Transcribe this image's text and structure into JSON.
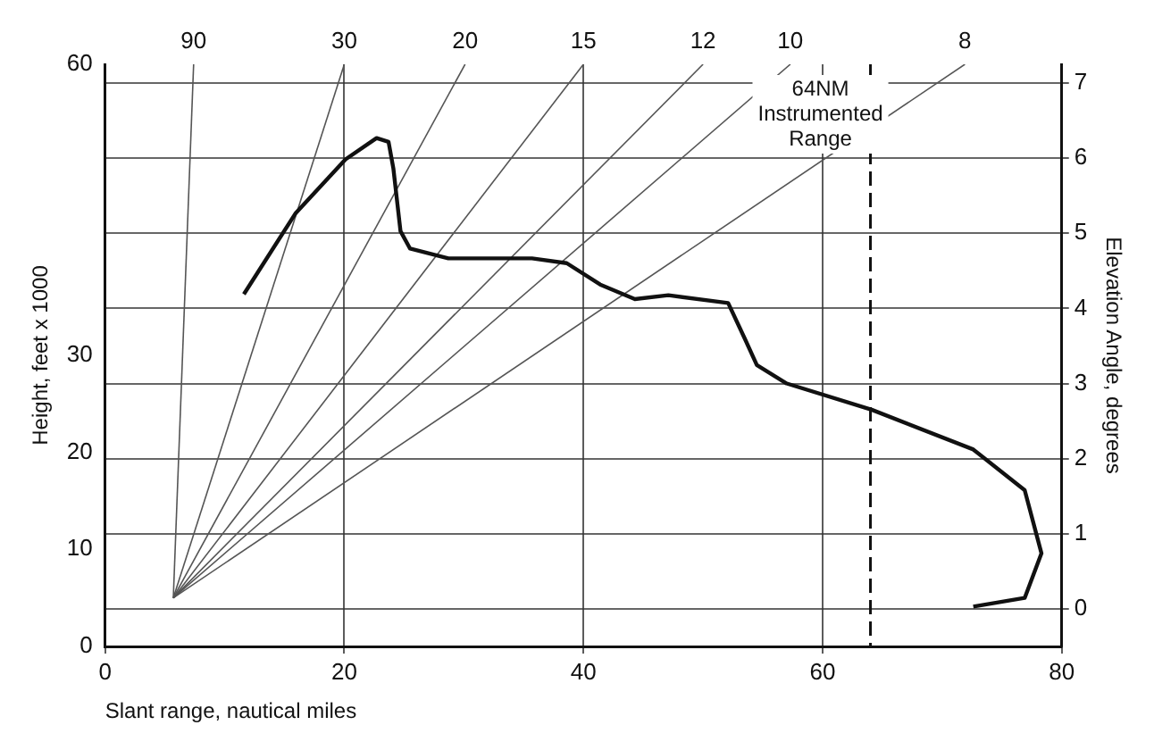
{
  "chart_data": {
    "type": "line",
    "xlabel": "Slant range, nautical miles",
    "ylabel": "Height, feet x 1000",
    "y2label": "Elevation Angle, degrees",
    "xlim": [
      0,
      80
    ],
    "xticks": [
      0,
      20,
      40,
      60,
      80
    ],
    "ylim": [
      0,
      60
    ],
    "yticks": [
      0,
      10,
      20,
      30,
      60
    ],
    "annotations": [
      {
        "text": "90",
        "x": 7.4,
        "y": 60
      },
      {
        "text": "30",
        "x": 20,
        "y": 60
      },
      {
        "text": "20",
        "x": 30.1,
        "y": 60
      },
      {
        "text": "15",
        "x": 40,
        "y": 60
      },
      {
        "text": "12",
        "x": 50,
        "y": 60
      },
      {
        "text": "10",
        "x": 57.3,
        "y": 60
      },
      {
        "text": "8",
        "x": 71.9,
        "y": 60
      }
    ],
    "y2lim": [
      -0.5,
      7.25
    ],
    "y2ticks": [
      0,
      1,
      2,
      3,
      4,
      5,
      6,
      7
    ],
    "series": [
      {
        "color": "#111111",
        "x": [
          11.6,
          15.9,
          20.1,
          22.7,
          23.7,
          24.1,
          24.7,
          25.5,
          28.7,
          35.7,
          38.6,
          41.4,
          44.3,
          47.1,
          52.1,
          53.5,
          54.5,
          57.0,
          64.1,
          72.6,
          76.9,
          78.3,
          76.9,
          72.6
        ],
        "values": [
          36.3,
          44.6,
          50.2,
          52.4,
          52.0,
          49.3,
          42.8,
          41.0,
          40.0,
          40.0,
          39.5,
          37.3,
          35.8,
          36.2,
          35.4,
          31.7,
          29.0,
          27.1,
          24.4,
          20.3,
          16.1,
          9.6,
          5.0,
          4.1
        ]
      },
      {
        "color": "#555555",
        "x": [
          5.7,
          7.4
        ],
        "values": [
          5,
          60
        ]
      },
      {
        "color": "#555555",
        "x": [
          5.7,
          20
        ],
        "values": [
          5,
          60
        ]
      },
      {
        "color": "#555555",
        "x": [
          5.7,
          30.1
        ],
        "values": [
          5,
          60
        ]
      },
      {
        "color": "#555555",
        "x": [
          5.7,
          40
        ],
        "values": [
          5,
          60
        ]
      },
      {
        "color": "#555555",
        "x": [
          5.7,
          50
        ],
        "values": [
          5,
          60
        ]
      },
      {
        "color": "#555555",
        "x": [
          5.7,
          57.3
        ],
        "values": [
          5,
          60
        ]
      },
      {
        "color": "#555555",
        "x": [
          5.7,
          71.9
        ],
        "values": [
          5,
          60
        ]
      }
    ],
    "ref_lines": [
      {
        "axis": "x",
        "value": 64,
        "label": "64NM Instrumented Range",
        "line_style": "dashed",
        "color": "#111111"
      }
    ],
    "grid": true,
    "legend": false,
    "marker": "none",
    "line_style": "solid"
  }
}
